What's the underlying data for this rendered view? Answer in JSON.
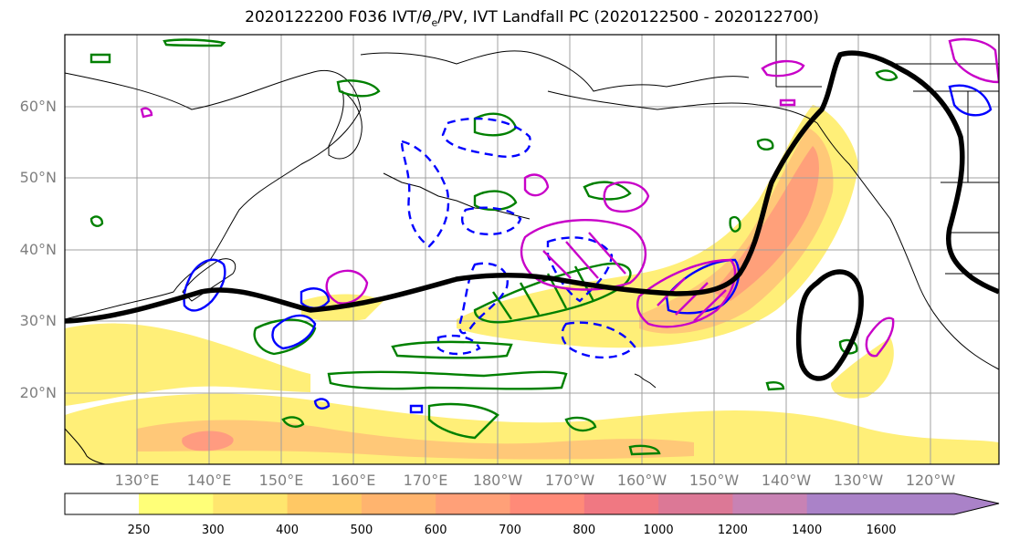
{
  "title_main": "2020122200 F036 IVT/",
  "title_symbol": "θ",
  "title_sub": "e",
  "title_rest": "/PV, IVT Landfall PC (2020122500 - 2020122700)",
  "lat_labels": [
    "60°N",
    "50°N",
    "40°N",
    "30°N",
    "20°N"
  ],
  "lon_labels": [
    "130°E",
    "140°E",
    "150°E",
    "160°E",
    "170°E",
    "180°W",
    "170°W",
    "160°W",
    "150°W",
    "140°W",
    "130°W",
    "120°W"
  ],
  "colorbar": {
    "ticks": [
      "250",
      "300",
      "400",
      "500",
      "600",
      "700",
      "800",
      "1000",
      "1200",
      "1400",
      "1600"
    ],
    "colors": [
      "#ffff78",
      "#ffe66e",
      "#ffc864",
      "#ffb46e",
      "#ffa078",
      "#ff8a78",
      "#f07882",
      "#dc7896",
      "#c882b4",
      "#aa82c8"
    ],
    "units_hint": "IVT"
  },
  "legend_colors": {
    "thetae_pv_blue": "#0000ff",
    "green": "#008000",
    "magenta": "#c800c8",
    "landfall_pc": "#000000",
    "coast": "#000000",
    "grid": "#a0a0a0"
  }
}
